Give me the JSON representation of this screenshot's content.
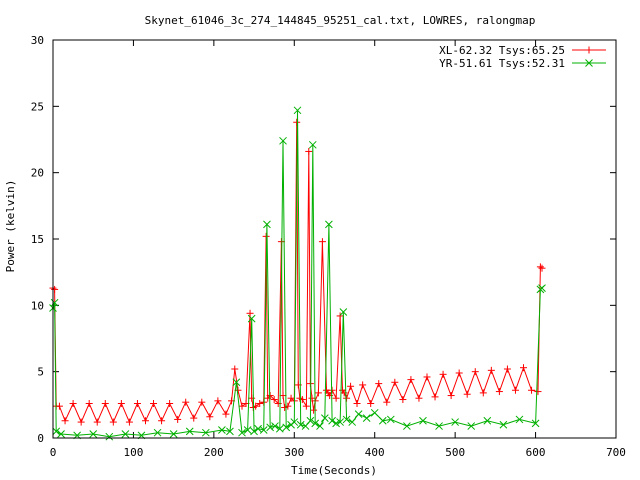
{
  "chart_data": {
    "type": "line",
    "title": "Skynet_61046_3c_274_144845_95251_cal.txt, LOWRES, ralongmap",
    "xlabel": "Time(Seconds)",
    "ylabel": "Power (kelvin)",
    "xlim": [
      0,
      700
    ],
    "ylim": [
      0,
      30
    ],
    "xticks": [
      0,
      100,
      200,
      300,
      400,
      500,
      600,
      700
    ],
    "yticks": [
      0,
      5,
      10,
      15,
      20,
      25,
      30
    ],
    "legend_position": "top-right",
    "grid": false,
    "series": [
      {
        "name": "XL-62.32 Tsys:65.25",
        "color": "#ff0000",
        "marker": "plus",
        "x": [
          0,
          2,
          4,
          8,
          15,
          25,
          35,
          45,
          55,
          65,
          75,
          85,
          95,
          105,
          115,
          125,
          135,
          145,
          155,
          165,
          175,
          185,
          195,
          205,
          215,
          222,
          226,
          230,
          235,
          240,
          245,
          247,
          249,
          252,
          257,
          262,
          265,
          267,
          270,
          275,
          280,
          284,
          286,
          288,
          292,
          296,
          300,
          303,
          305,
          307,
          310,
          315,
          318,
          320,
          322,
          324,
          326,
          330,
          335,
          340,
          342,
          344,
          347,
          352,
          357,
          360,
          362,
          365,
          370,
          378,
          385,
          395,
          405,
          415,
          425,
          435,
          445,
          455,
          465,
          475,
          485,
          495,
          505,
          515,
          525,
          535,
          545,
          555,
          565,
          575,
          585,
          595,
          603,
          606,
          608
        ],
        "y": [
          11.3,
          11.2,
          2.4,
          2.4,
          1.3,
          2.6,
          1.2,
          2.6,
          1.2,
          2.6,
          1.2,
          2.6,
          1.2,
          2.6,
          1.3,
          2.6,
          1.3,
          2.6,
          1.4,
          2.7,
          1.5,
          2.7,
          1.6,
          2.8,
          1.8,
          2.8,
          5.2,
          3.6,
          2.4,
          2.6,
          9.4,
          3.0,
          2.3,
          2.4,
          2.6,
          2.7,
          15.2,
          3.0,
          3.2,
          2.9,
          2.6,
          14.8,
          3.2,
          2.3,
          2.4,
          3.0,
          2.8,
          23.8,
          4.0,
          3.0,
          2.9,
          2.4,
          21.6,
          4.1,
          3.0,
          2.1,
          2.8,
          3.4,
          14.8,
          3.6,
          3.4,
          3.2,
          3.6,
          3.0,
          9.2,
          3.6,
          3.4,
          3.0,
          3.9,
          2.6,
          4.0,
          2.6,
          4.1,
          2.7,
          4.2,
          2.9,
          4.4,
          3.0,
          4.6,
          3.1,
          4.8,
          3.2,
          4.9,
          3.3,
          5.0,
          3.4,
          5.1,
          3.5,
          5.2,
          3.6,
          5.3,
          3.6,
          3.5,
          12.9,
          12.8
        ]
      },
      {
        "name": "YR-51.61 Tsys:52.31",
        "color": "#00b000",
        "marker": "cross",
        "x": [
          0,
          2,
          4,
          10,
          30,
          50,
          70,
          90,
          110,
          130,
          150,
          170,
          190,
          210,
          220,
          228,
          235,
          242,
          247,
          250,
          255,
          262,
          266,
          270,
          276,
          282,
          286,
          290,
          296,
          300,
          304,
          308,
          314,
          320,
          323,
          326,
          332,
          338,
          343,
          347,
          352,
          357,
          361,
          365,
          372,
          380,
          390,
          400,
          410,
          420,
          440,
          460,
          480,
          500,
          520,
          540,
          560,
          580,
          600,
          606,
          608
        ],
        "y": [
          9.8,
          10.2,
          0.5,
          0.3,
          0.2,
          0.3,
          0.1,
          0.3,
          0.2,
          0.4,
          0.3,
          0.5,
          0.4,
          0.6,
          0.5,
          4.2,
          0.4,
          0.6,
          9.0,
          0.5,
          0.7,
          0.6,
          16.1,
          0.8,
          0.9,
          0.7,
          22.4,
          0.8,
          1.0,
          1.2,
          24.7,
          1.0,
          0.9,
          1.3,
          22.1,
          1.1,
          0.9,
          1.5,
          16.1,
          1.3,
          1.1,
          1.2,
          9.5,
          1.4,
          1.2,
          1.8,
          1.5,
          1.9,
          1.3,
          1.4,
          0.9,
          1.3,
          0.9,
          1.2,
          0.9,
          1.3,
          1.0,
          1.4,
          1.1,
          11.2,
          11.3
        ]
      }
    ]
  }
}
